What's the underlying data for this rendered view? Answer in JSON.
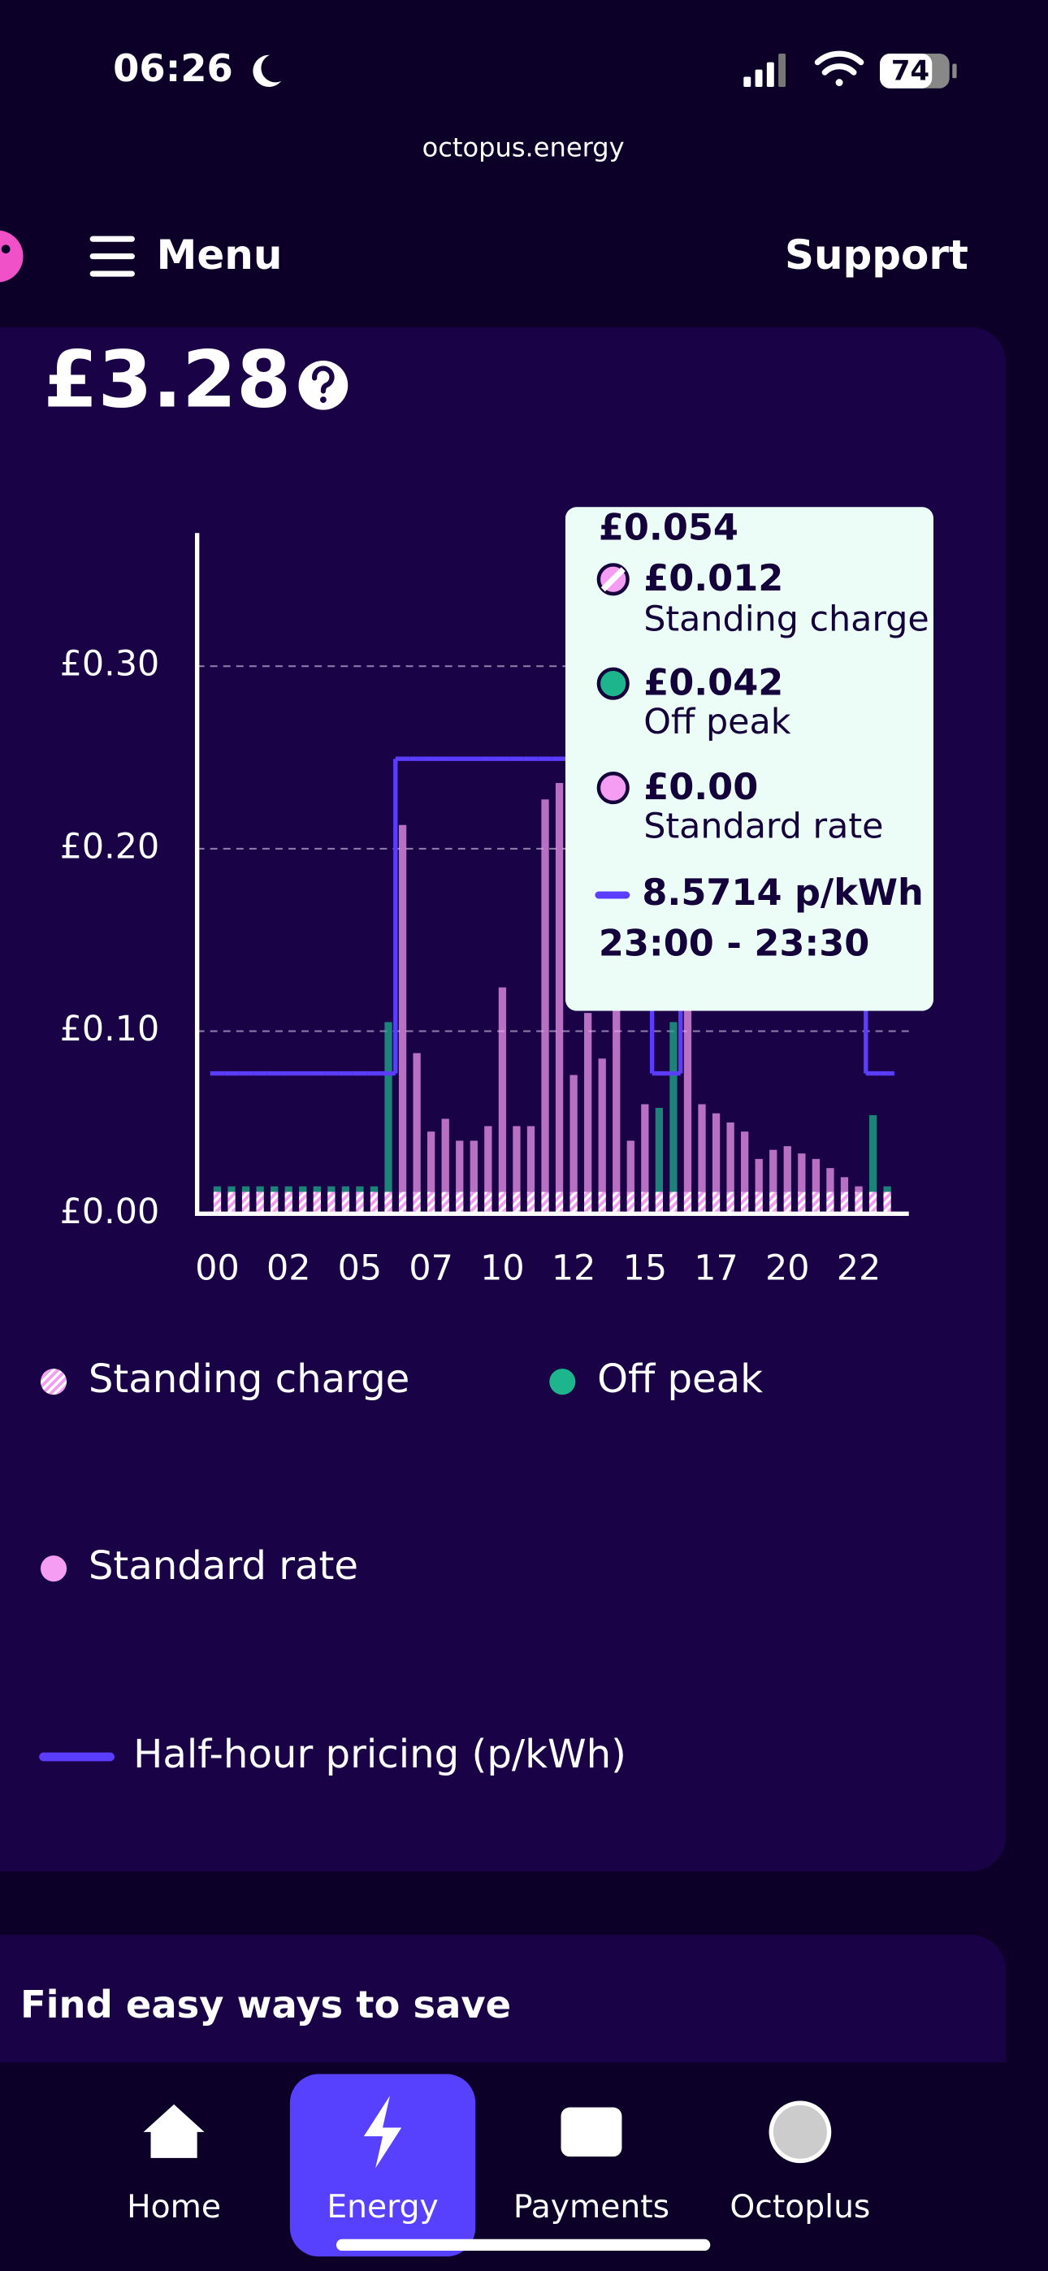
{
  "status_bar": {
    "time": "06:26",
    "battery": "74"
  },
  "url": "octopus.energy",
  "header": {
    "menu": "Menu",
    "support": "Support"
  },
  "summary": {
    "amount": "£3.28"
  },
  "chart_data": {
    "type": "bar",
    "stacked": true,
    "categories": [
      "00",
      null,
      null,
      null,
      null,
      "02",
      null,
      null,
      null,
      null,
      "05",
      null,
      null,
      null,
      null,
      "07",
      null,
      null,
      null,
      null,
      "10",
      null,
      null,
      null,
      null,
      "12",
      null,
      null,
      null,
      null,
      "15",
      null,
      null,
      null,
      null,
      "17",
      null,
      null,
      null,
      null,
      "20",
      null,
      null,
      null,
      null,
      "22",
      null,
      null
    ],
    "series": [
      {
        "name": "Standing charge",
        "color": "#f59cf3",
        "pattern": "hatched",
        "values": [
          0.012,
          0.012,
          0.012,
          0.012,
          0.012,
          0.012,
          0.012,
          0.012,
          0.012,
          0.012,
          0.012,
          0.012,
          0.012,
          0.012,
          0.012,
          0.012,
          0.012,
          0.012,
          0.012,
          0.012,
          0.012,
          0.012,
          0.012,
          0.012,
          0.012,
          0.012,
          0.012,
          0.012,
          0.012,
          0.012,
          0.012,
          0.012,
          0.012,
          0.012,
          0.012,
          0.012,
          0.012,
          0.012,
          0.012,
          0.012,
          0.012,
          0.012,
          0.012,
          0.012,
          0.012,
          0.012,
          0.012,
          0.012
        ]
      },
      {
        "name": "Off peak",
        "color": "#1db58c",
        "values": [
          0.003,
          0.003,
          0.003,
          0.003,
          0.003,
          0.003,
          0.003,
          0.003,
          0.003,
          0.003,
          0.003,
          0.003,
          0.093,
          0,
          0,
          0,
          0,
          0,
          0,
          0,
          0,
          0,
          0,
          0,
          0,
          0,
          0,
          0,
          0,
          0,
          0,
          0.046,
          0.093,
          0,
          0,
          0,
          0,
          0,
          0,
          0,
          0,
          0,
          0,
          0,
          0,
          0,
          0.042,
          0.003
        ]
      },
      {
        "name": "Standard rate",
        "color": "#f59cf3",
        "values": [
          0,
          0,
          0,
          0,
          0,
          0,
          0,
          0,
          0,
          0,
          0,
          0,
          0,
          0.201,
          0.076,
          0.033,
          0.04,
          0.028,
          0.028,
          0.036,
          0.112,
          0.036,
          0.036,
          0.215,
          0.224,
          0.064,
          0.098,
          0.073,
          0.118,
          0.028,
          0.048,
          0,
          0,
          0.108,
          0.048,
          0.043,
          0.038,
          0.033,
          0.018,
          0.023,
          0.025,
          0.021,
          0.018,
          0.013,
          0.008,
          0.003,
          0,
          0
        ]
      },
      {
        "name": "Half-hour pricing (p/kWh)",
        "color": "#5b3dff",
        "type": "step",
        "axis": "y2",
        "values": [
          8.5714,
          8.5714,
          8.5714,
          8.5714,
          8.5714,
          8.5714,
          8.5714,
          8.5714,
          8.5714,
          8.5714,
          8.5714,
          8.5714,
          8.5714,
          27.8,
          27.8,
          27.8,
          27.8,
          27.8,
          27.8,
          27.8,
          27.8,
          27.8,
          27.8,
          27.8,
          27.8,
          27.8,
          27.8,
          27.8,
          27.8,
          27.8,
          27.8,
          8.5714,
          8.5714,
          27.8,
          27.8,
          27.8,
          27.8,
          27.8,
          27.8,
          27.8,
          27.8,
          27.8,
          27.8,
          27.8,
          27.8,
          27.8,
          8.5714,
          8.5714
        ]
      }
    ],
    "ylim": [
      0,
      0.373
    ],
    "yticks": [
      {
        "value": 0,
        "label": "£0.00"
      },
      {
        "value": 0.1,
        "label": "£0.10"
      },
      {
        "value": 0.2,
        "label": "£0.20"
      },
      {
        "value": 0.3,
        "label": "£0.30"
      }
    ],
    "y2lim": [
      0,
      41.6
    ],
    "grid": true
  },
  "tooltip": {
    "total": "£0.054",
    "items": [
      {
        "value": "£0.012",
        "label": "Standing charge"
      },
      {
        "value": "£0.042",
        "label": "Off peak"
      },
      {
        "value": "£0.00",
        "label": "Standard rate"
      }
    ],
    "price": "8.5714 p/kWh",
    "time": "23:00 - 23:30"
  },
  "savings": {
    "title": "Find easy ways to save"
  },
  "nav": {
    "active": 1,
    "items": [
      "Home",
      "Energy",
      "Payments",
      "Octoplus"
    ]
  }
}
